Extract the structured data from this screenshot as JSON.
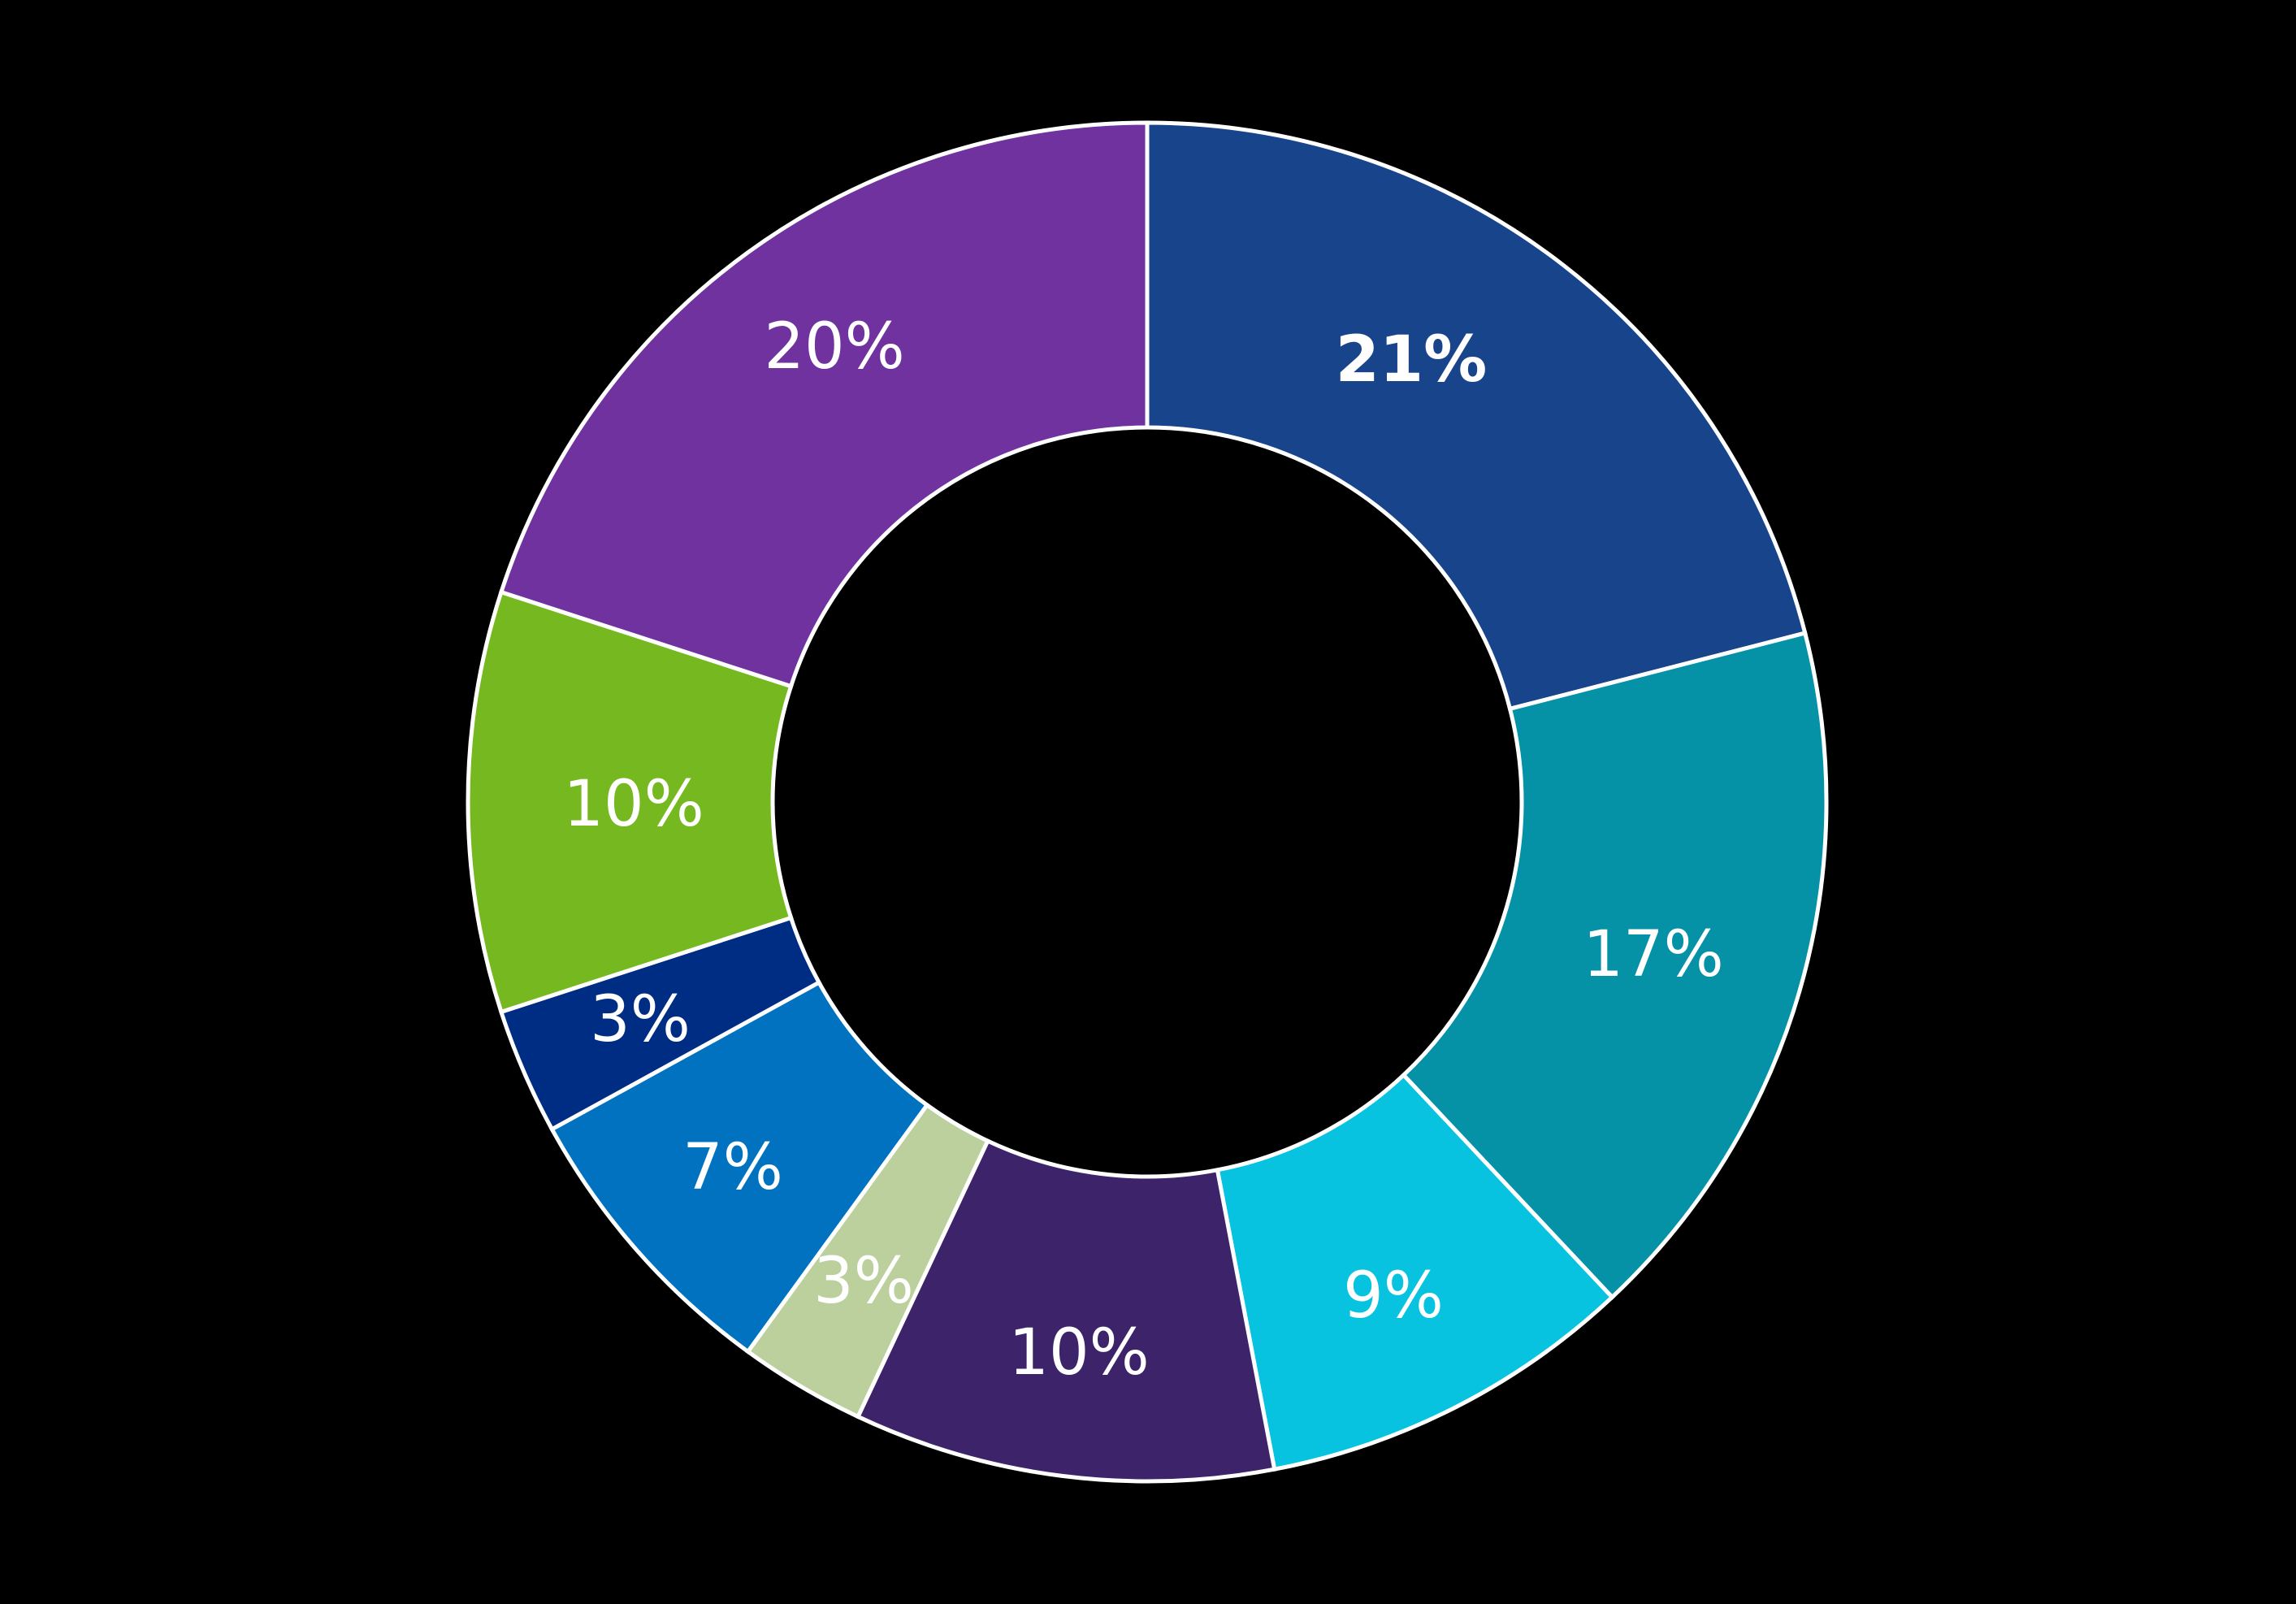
{
  "chart_data": {
    "type": "pie",
    "variant": "donut",
    "title": "",
    "start_angle_deg": 0,
    "direction": "clockwise",
    "center": [
      1412,
      987
    ],
    "outer_radius": 836,
    "inner_radius": 461,
    "stroke_color": "#ffffff",
    "background": "#000000",
    "legend": "none",
    "slices": [
      {
        "label": "21%",
        "value": 21,
        "color": "#17448A",
        "label_pos": [
          1737,
          443
        ],
        "bold": true
      },
      {
        "label": "17%",
        "value": 17,
        "color": "#0692A6",
        "label_pos": [
          2035,
          1175
        ],
        "bold": false
      },
      {
        "label": "9%",
        "value": 9,
        "color": "#08C3E0",
        "label_pos": [
          1715,
          1595
        ],
        "bold": false
      },
      {
        "label": "10%",
        "value": 10,
        "color": "#3D236A",
        "label_pos": [
          1328,
          1665
        ],
        "bold": false
      },
      {
        "label": "3%",
        "value": 3,
        "color": "#BBD09C",
        "label_pos": [
          1063,
          1577
        ],
        "bold": false
      },
      {
        "label": "7%",
        "value": 7,
        "color": "#0172C0",
        "label_pos": [
          902,
          1437
        ],
        "bold": false
      },
      {
        "label": "3%",
        "value": 3,
        "color": "#002D84",
        "label_pos": [
          788,
          1255
        ],
        "bold": false
      },
      {
        "label": "10%",
        "value": 10,
        "color": "#76B820",
        "label_pos": [
          780,
          990
        ],
        "bold": false
      },
      {
        "label": "20%",
        "value": 20,
        "color": "#6F329E",
        "label_pos": [
          1027,
          427
        ],
        "bold": false
      }
    ]
  }
}
